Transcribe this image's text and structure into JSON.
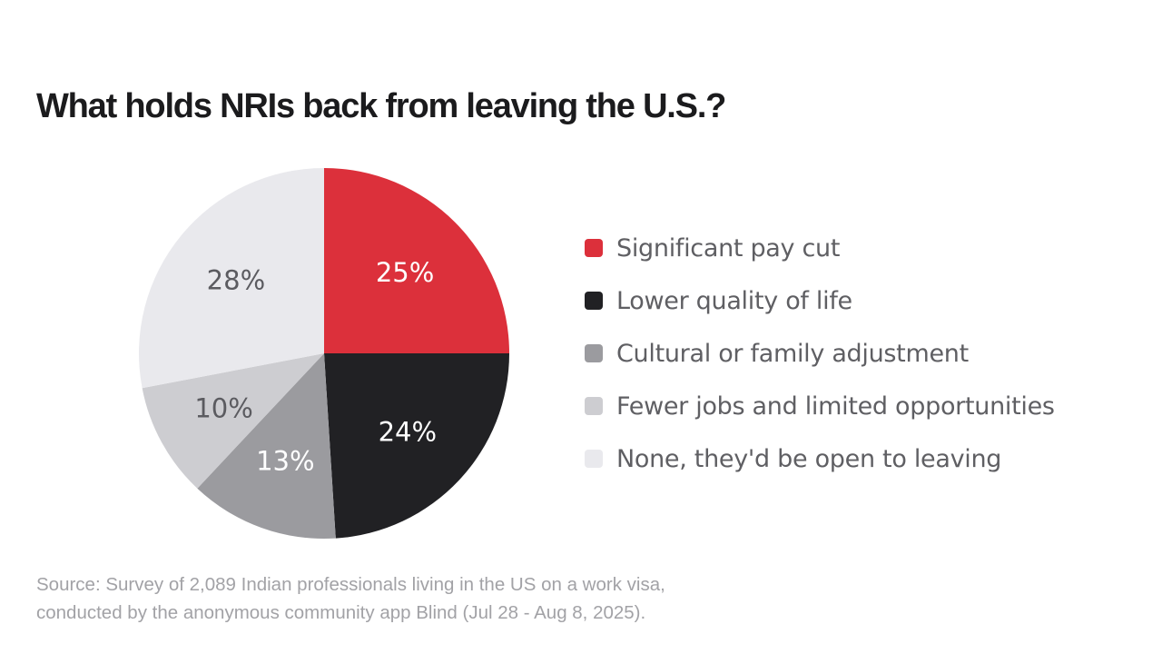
{
  "chart_data": {
    "type": "pie",
    "title": "What holds NRIs back from leaving the U.S.?",
    "slices": [
      {
        "label": "Significant pay cut",
        "value": 25,
        "display": "25%",
        "color": "#dc303b",
        "text_color": "#ffffff"
      },
      {
        "label": "Lower quality of life",
        "value": 24,
        "display": "24%",
        "color": "#212124",
        "text_color": "#ffffff"
      },
      {
        "label": "Cultural or family adjustment",
        "value": 13,
        "display": "13%",
        "color": "#9b9b9f",
        "text_color": "#ffffff"
      },
      {
        "label": "Fewer jobs and limited opportunities",
        "value": 10,
        "display": "10%",
        "color": "#cdcdd1",
        "text_color": "#5b5b60"
      },
      {
        "label": "None, they'd be open to leaving",
        "value": 28,
        "display": "28%",
        "color": "#e9e9ed",
        "text_color": "#5b5b60"
      }
    ],
    "start_angle_deg": 0,
    "direction": "clockwise",
    "legend_position": "right"
  },
  "footer": {
    "source_line1": "Source: Survey of 2,089 Indian professionals living in the US on a work visa,",
    "source_line2": "conducted by the anonymous community app Blind (Jul 28 - Aug 8, 2025)."
  }
}
